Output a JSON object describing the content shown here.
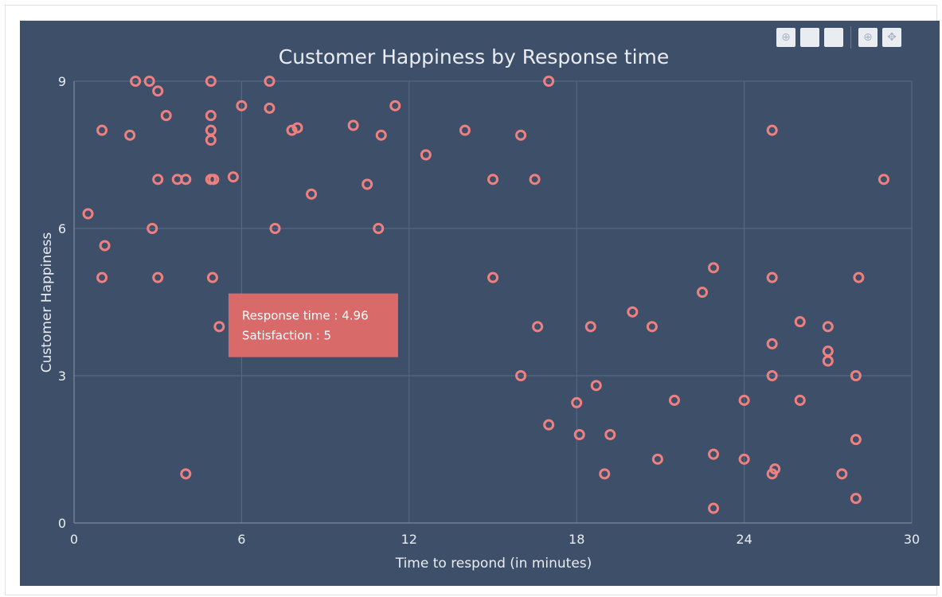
{
  "toolbar": {
    "buttons": [
      {
        "icon": "zoom-icon",
        "glyph": "⊕"
      },
      {
        "icon": "blank-icon",
        "glyph": ""
      },
      {
        "icon": "blank-icon",
        "glyph": ""
      },
      {
        "icon": "zoom-in-icon",
        "glyph": "⊕"
      },
      {
        "icon": "pan-icon",
        "glyph": "✥"
      }
    ]
  },
  "tooltip": {
    "line1": "Response time : 4.96",
    "line2": "Satisfaction : 5",
    "x": 4.96,
    "y": 5
  },
  "colors": {
    "background": "#3e4f6a",
    "marker": "#ef8080",
    "tooltip": "#d86a6a",
    "grid": "#5a6b86",
    "text": "#e9edf2"
  },
  "chart_data": {
    "type": "scatter",
    "title": "Customer Happiness by Response time",
    "xlabel": "Time to respond (in minutes)",
    "ylabel": "Customer Happiness",
    "xlim": [
      0,
      30
    ],
    "ylim": [
      0,
      9
    ],
    "xticks": [
      0,
      6,
      12,
      18,
      24,
      30
    ],
    "yticks": [
      0,
      3,
      6,
      9
    ],
    "grid": true,
    "points": [
      [
        0.5,
        6.3
      ],
      [
        1,
        8
      ],
      [
        1,
        5
      ],
      [
        1.1,
        5.65
      ],
      [
        2,
        7.9
      ],
      [
        2.2,
        9
      ],
      [
        2.7,
        9
      ],
      [
        2.8,
        6
      ],
      [
        3,
        8.8
      ],
      [
        3,
        7
      ],
      [
        3,
        5
      ],
      [
        3.3,
        8.3
      ],
      [
        3.7,
        7
      ],
      [
        4,
        7
      ],
      [
        4,
        1
      ],
      [
        4.9,
        9
      ],
      [
        4.9,
        8.3
      ],
      [
        4.9,
        8
      ],
      [
        4.9,
        7.8
      ],
      [
        4.9,
        7
      ],
      [
        4.96,
        5
      ],
      [
        5,
        7
      ],
      [
        5.2,
        4
      ],
      [
        5.7,
        7.05
      ],
      [
        6,
        8.5
      ],
      [
        7,
        9
      ],
      [
        7,
        8.45
      ],
      [
        7.2,
        6
      ],
      [
        7.8,
        8
      ],
      [
        8,
        8.05
      ],
      [
        8.5,
        6.7
      ],
      [
        10,
        8.1
      ],
      [
        10.5,
        6.9
      ],
      [
        10.9,
        6
      ],
      [
        11,
        7.9
      ],
      [
        11.5,
        8.5
      ],
      [
        12.6,
        7.5
      ],
      [
        14,
        8
      ],
      [
        15,
        7
      ],
      [
        15,
        5
      ],
      [
        16,
        7.9
      ],
      [
        16,
        3
      ],
      [
        16.5,
        7
      ],
      [
        16.6,
        4
      ],
      [
        17,
        9
      ],
      [
        17,
        2
      ],
      [
        18,
        2.45
      ],
      [
        18.1,
        1.8
      ],
      [
        18.5,
        4
      ],
      [
        18.7,
        2.8
      ],
      [
        19,
        1
      ],
      [
        19.2,
        1.8
      ],
      [
        20,
        4.3
      ],
      [
        20.7,
        4
      ],
      [
        20.9,
        1.3
      ],
      [
        21.5,
        2.5
      ],
      [
        22.5,
        4.7
      ],
      [
        22.9,
        5.2
      ],
      [
        22.9,
        1.4
      ],
      [
        22.9,
        0.3
      ],
      [
        24,
        2.5
      ],
      [
        24,
        1.3
      ],
      [
        25,
        8
      ],
      [
        25,
        5
      ],
      [
        25,
        3.65
      ],
      [
        25,
        3
      ],
      [
        25,
        1
      ],
      [
        25.1,
        1.1
      ],
      [
        26,
        4.1
      ],
      [
        26,
        2.5
      ],
      [
        27,
        4
      ],
      [
        27,
        3.5
      ],
      [
        27,
        3.3
      ],
      [
        27.5,
        1
      ],
      [
        28,
        3
      ],
      [
        28,
        1.7
      ],
      [
        28,
        0.5
      ],
      [
        28.1,
        5
      ],
      [
        29,
        7
      ]
    ]
  }
}
